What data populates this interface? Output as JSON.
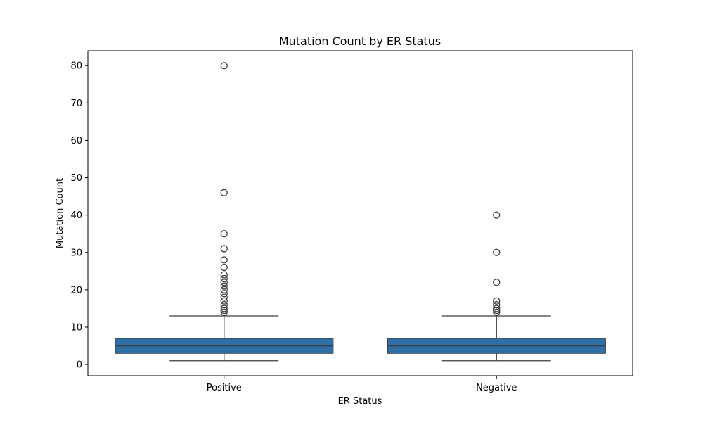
{
  "chart_data": {
    "type": "box",
    "title": "Mutation Count by ER Status",
    "xlabel": "ER Status",
    "ylabel": "Mutation Count",
    "categories": [
      "Positive",
      "Negative"
    ],
    "ylim": [
      -3,
      84
    ],
    "yticks": [
      0,
      10,
      20,
      30,
      40,
      50,
      60,
      70,
      80
    ],
    "grid": false,
    "legend": "none",
    "box_color": "#2f6fa6",
    "line_color": "#3d3d3d",
    "boxes": [
      {
        "category": "Positive",
        "whisker_low": 1,
        "q1": 3,
        "median": 5,
        "q3": 7,
        "whisker_high": 13,
        "outliers": [
          14,
          14.5,
          15,
          16,
          17,
          18,
          19,
          20,
          21,
          22,
          23,
          24,
          26,
          28,
          31,
          35,
          46,
          80
        ]
      },
      {
        "category": "Negative",
        "whisker_low": 1,
        "q1": 3,
        "median": 5,
        "q3": 7,
        "whisker_high": 13,
        "outliers": [
          14,
          14.5,
          15,
          16,
          17,
          22,
          30,
          40
        ]
      }
    ]
  }
}
